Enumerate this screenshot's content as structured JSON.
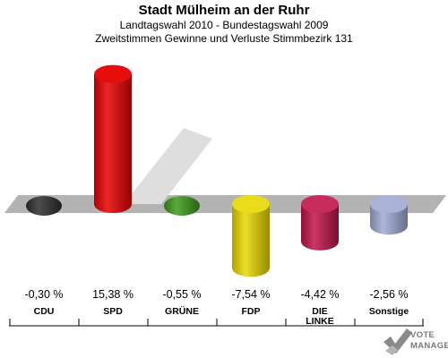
{
  "header": {
    "title": "Stadt Mülheim an der Ruhr",
    "subtitle": "Landtagswahl 2010 - Bundestagswahl 2009",
    "description": "Zweitstimmen Gewinne und Verluste Stimmbezirk 131"
  },
  "chart_data": {
    "type": "bar",
    "title": "Stadt Mülheim an der Ruhr",
    "categories": [
      "CDU",
      "SPD",
      "GRÜNE",
      "FDP",
      "DIE LINKE",
      "Sonstige"
    ],
    "values": [
      -0.3,
      15.38,
      -0.55,
      -7.54,
      -4.42,
      -2.56
    ],
    "value_labels": [
      "-0,30 %",
      "15,38 %",
      "-0,55 %",
      "-7,54 %",
      "-4,42 %",
      "-2,56 %"
    ],
    "colors": [
      "#2e2e2e",
      "#e60000",
      "#3c9a1a",
      "#e8d800",
      "#c0144a",
      "#a0aad2"
    ],
    "units": "%",
    "ylim": [
      -10,
      16
    ],
    "grid": false,
    "legend": "none"
  },
  "logo": {
    "line1": "VOTE",
    "line2": "MANAGER"
  }
}
